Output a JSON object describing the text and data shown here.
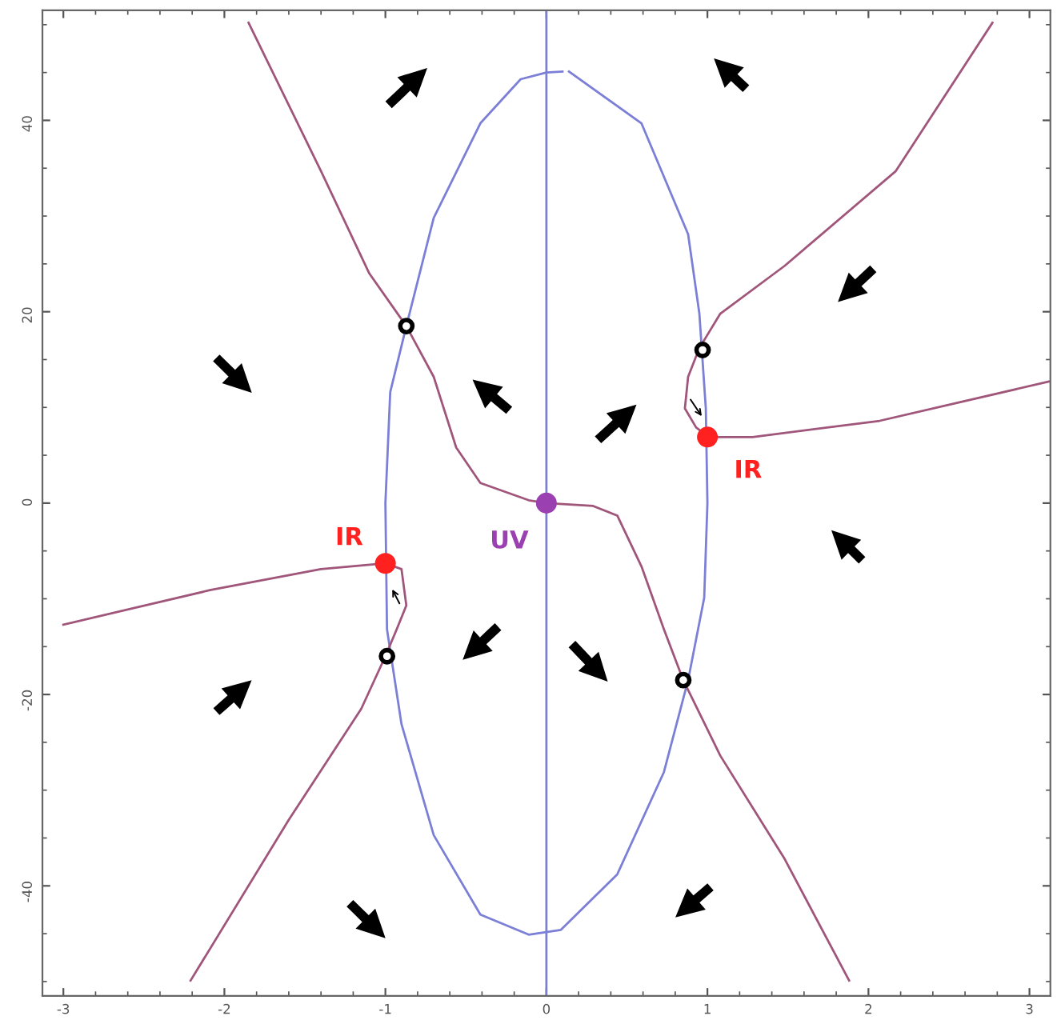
{
  "chart_data": {
    "type": "line",
    "xlim": [
      -3.13,
      3.13
    ],
    "ylim": [
      -51.5,
      51.5
    ],
    "xticks": [
      -3,
      -2,
      -1,
      0,
      1,
      2,
      3
    ],
    "yticks": [
      -40,
      -20,
      0,
      20,
      40
    ],
    "grid": false,
    "legend": false,
    "ref_lines": [
      {
        "axis": "x",
        "value": 0,
        "color": "#7b7fd6"
      }
    ],
    "series": [
      {
        "color": "#7b7fd6",
        "marker": "none",
        "x": [
          0.14,
          0.59,
          0.88,
          0.95,
          0.99,
          1.0,
          0.98,
          0.88,
          0.73,
          0.44,
          0.09,
          -0.11,
          -0.41,
          -0.7,
          -0.9,
          -0.99,
          -1.0,
          -0.97,
          -0.87,
          -0.7,
          -0.41,
          -0.16,
          0.0,
          0.1
        ],
        "values": [
          45.1,
          39.7,
          28.1,
          19.8,
          9.9,
          0,
          -9.9,
          -18.5,
          -28.1,
          -38.8,
          -44.6,
          -45.1,
          -43,
          -34.7,
          -23.1,
          -13.2,
          0,
          11.6,
          18.5,
          29.8,
          39.7,
          44.3,
          45.0,
          45.1
        ]
      },
      {
        "color": "#a0557a",
        "marker": "none",
        "x": [
          -1.85,
          -1.4,
          -1.1,
          -0.87,
          -0.7,
          -0.56,
          -0.41,
          -0.11,
          0,
          0.29,
          0.44,
          0.59,
          0.73,
          0.85,
          1.08,
          1.48,
          1.88
        ],
        "values": [
          50.2,
          34.7,
          24.0,
          18.5,
          13.2,
          5.8,
          2.1,
          0.3,
          0,
          -0.3,
          -1.3,
          -6.6,
          -13.2,
          -18.5,
          -26.4,
          -37.2,
          -49.9
        ]
      },
      {
        "color": "#a0557a",
        "marker": "none",
        "x": [
          2.77,
          2.17,
          1.48,
          1.08,
          0.95,
          0.88,
          0.86,
          0.93,
          1.01,
          1.28,
          2.07,
          3.12
        ],
        "values": [
          50.2,
          34.7,
          24.8,
          19.8,
          16.2,
          13.2,
          9.9,
          7.9,
          6.9,
          6.9,
          8.6,
          12.7
        ]
      },
      {
        "color": "#a0557a",
        "marker": "none",
        "x": [
          -3.0,
          -2.09,
          -1.4,
          -1.0,
          -0.9,
          -0.87,
          -0.93,
          -1.0,
          -1.15,
          -1.6,
          -2.21
        ],
        "values": [
          -12.7,
          -9.1,
          -6.9,
          -6.3,
          -6.9,
          -10.7,
          -13.2,
          -16.0,
          -21.5,
          -33.1,
          -49.9
        ]
      },
      {
        "type": "scatter",
        "color": "#000000",
        "marker": "circle",
        "x": [
          -0.87,
          0.97,
          -0.99,
          0.85
        ],
        "values": [
          18.5,
          16,
          -16,
          -18.5
        ]
      },
      {
        "type": "scatter",
        "name": "IR",
        "color": "#ff2020",
        "marker": "circle",
        "x": [
          1.0,
          -1.0
        ],
        "values": [
          6.9,
          -6.3
        ]
      },
      {
        "type": "scatter",
        "name": "UV",
        "color": "#9b40b0",
        "marker": "circle",
        "x": [
          0
        ],
        "values": [
          0
        ]
      }
    ]
  }
}
